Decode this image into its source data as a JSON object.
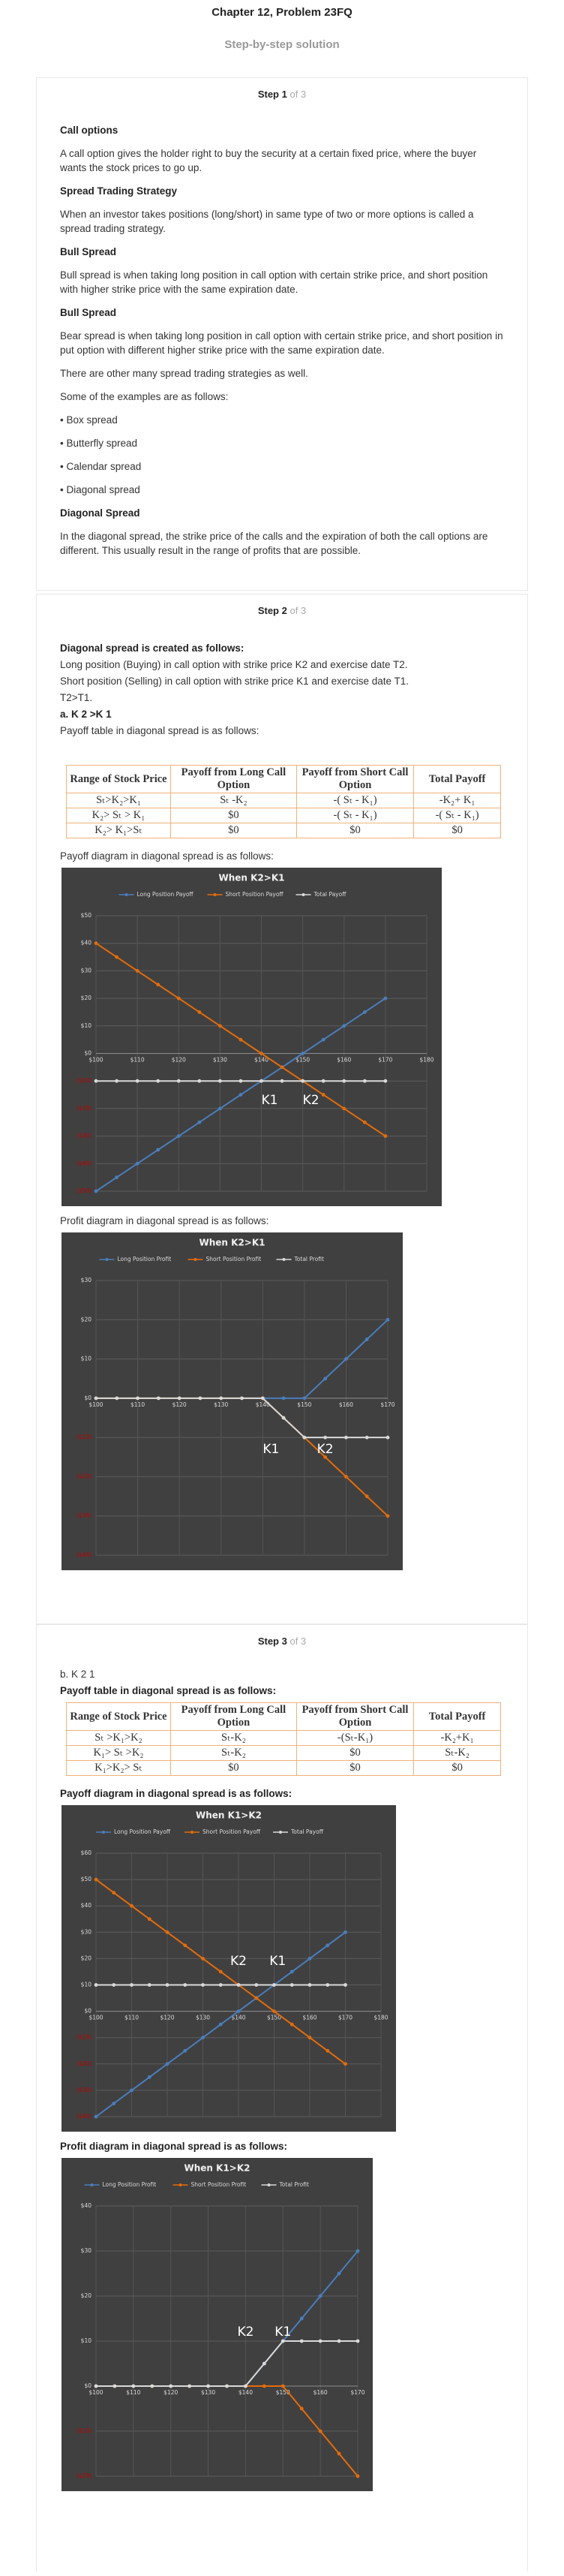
{
  "header": {
    "title": "Chapter 12, Problem 23FQ",
    "subtitle": "Step-by-step solution"
  },
  "steps": [
    {
      "label": "Step 1",
      "of": "of 3",
      "items": [
        "Call options",
        "A call option gives the holder right to buy the security at a certain fixed price, where the buyer wants the stock prices to go up.",
        "Spread Trading Strategy",
        "When an investor takes positions (long/short) in same type of two or more options is called a spread trading strategy.",
        "Bull Spread",
        "Bull spread is when taking long position in call option with certain strike price, and short position with higher strike price with the same expiration date.",
        "Bull Spread",
        "Bear spread is when taking long position in call option with certain strike price, and short position in put option with different higher strike price with the same expiration date.",
        "There are other many spread trading strategies as well.",
        "Some of the examples are as follows:",
        "• Box spread",
        "• Butterfly spread",
        "• Calendar spread",
        "• Diagonal spread",
        "Diagonal Spread",
        "In the diagonal spread, the strike price of the calls and the expiration of both the call options are different. This usually result in the range of profits that are possible."
      ]
    },
    {
      "label": "Step 2",
      "of": "of 3",
      "items": [
        "Diagonal spread is created as follows:",
        "Long position (Buying) in call option with strike price K2 and exercise date T2.",
        "Short position (Selling) in call option with strike price K1 and exercise date T1.",
        "T2>T1.",
        "a. K 2 >K 1",
        "Payoff table in diagonal spread is as follows:"
      ],
      "table": {
        "headers": [
          "Range of Stock Price",
          "Payoff from Long Call Option",
          "Payoff from Short Call Option",
          "Total Payoff"
        ],
        "rows": [
          [
            "Sₜ>K₂>K₁",
            "Sₜ -K₂",
            "-( Sₜ - K₁)",
            "-K₂+ K₁"
          ],
          [
            "K₂> Sₜ > K₁",
            "$0",
            "-( Sₜ - K₁)",
            "-( Sₜ - K₁)"
          ],
          [
            "K₂> K₁>Sₜ",
            "$0",
            "$0",
            "$0"
          ]
        ]
      },
      "captions": [
        "Payoff diagram in diagonal spread is as follows:",
        "Profit diagram in diagonal spread is as follows:"
      ]
    },
    {
      "label": "Step 3",
      "of": "of 3",
      "items": [
        "b. K 2 1",
        "Payoff table in diagonal spread is as follows:"
      ],
      "table": {
        "headers": [
          "Range of Stock Price",
          "Payoff from Long Call Option",
          "Payoff from Short Call Option",
          "Total Payoff"
        ],
        "rows": [
          [
            "Sₜ >K₁>K₂",
            "Sₜ-K₂",
            "-(Sₜ-K₁)",
            "-K₂+K₁"
          ],
          [
            "K₁> Sₜ >K₂",
            "Sₜ-K₂",
            "$0",
            "Sₜ-K₂"
          ],
          [
            "K₁>K₂> Sₜ",
            "$0",
            "$0",
            "$0"
          ]
        ]
      },
      "captions": [
        "Payoff diagram in diagonal spread is as follows:",
        "Profit diagram in diagonal spread is as follows:"
      ]
    }
  ],
  "chart_data": [
    {
      "type": "line",
      "title": "When K2>K1",
      "background": "#404040",
      "grid": true,
      "negative_tick_color": "#c00000",
      "x": [
        100,
        105,
        110,
        115,
        120,
        125,
        130,
        135,
        140,
        145,
        150,
        155,
        160,
        165,
        170
      ],
      "xlim": [
        100,
        180
      ],
      "xticks": [
        {
          "value": 100,
          "label": "$100"
        },
        {
          "value": 110,
          "label": "$110"
        },
        {
          "value": 120,
          "label": "$120"
        },
        {
          "value": 130,
          "label": "$130"
        },
        {
          "value": 140,
          "label": "$140"
        },
        {
          "value": 150,
          "label": "$150"
        },
        {
          "value": 160,
          "label": "$160"
        },
        {
          "value": 170,
          "label": "$170"
        },
        {
          "value": 180,
          "label": "$180"
        }
      ],
      "ylim": [
        -50,
        50
      ],
      "yticks": [
        {
          "value": -50,
          "label": "($50)"
        },
        {
          "value": -40,
          "label": "($40)"
        },
        {
          "value": -30,
          "label": "($30)"
        },
        {
          "value": -20,
          "label": "($20)"
        },
        {
          "value": -10,
          "label": "($10)"
        },
        {
          "value": 0,
          "label": "$0"
        },
        {
          "value": 10,
          "label": "$10"
        },
        {
          "value": 20,
          "label": "$20"
        },
        {
          "value": 30,
          "label": "$30"
        },
        {
          "value": 40,
          "label": "$40"
        },
        {
          "value": 50,
          "label": "$50"
        }
      ],
      "series": [
        {
          "name": "Long Position Payoff",
          "color": "#4a7ebb",
          "values": [
            -50,
            -45,
            -40,
            -35,
            -30,
            -25,
            -20,
            -15,
            -10,
            -5,
            0,
            5,
            10,
            15,
            20
          ]
        },
        {
          "name": "Short Position Payoff",
          "color": "#e46c0a",
          "values": [
            40,
            35,
            30,
            25,
            20,
            15,
            10,
            5,
            0,
            -5,
            -10,
            -15,
            -20,
            -25,
            -30
          ]
        },
        {
          "name": "Total Payoff",
          "color": "#d9d9d9",
          "values": [
            -10,
            -10,
            -10,
            -10,
            -10,
            -10,
            -10,
            -10,
            -10,
            -10,
            -10,
            -10,
            -10,
            -10,
            -10
          ]
        }
      ],
      "annotations": [
        {
          "text": "K1",
          "x": 142,
          "y": -17
        },
        {
          "text": "K2",
          "x": 152,
          "y": -17
        }
      ]
    },
    {
      "type": "line",
      "title": "When K2>K1",
      "background": "#404040",
      "grid": true,
      "negative_tick_color": "#c00000",
      "x": [
        100,
        105,
        110,
        115,
        120,
        125,
        130,
        135,
        140,
        145,
        150,
        155,
        160,
        165,
        170
      ],
      "xlim": [
        100,
        170
      ],
      "xticks": [
        {
          "value": 100,
          "label": "$100"
        },
        {
          "value": 110,
          "label": "$110"
        },
        {
          "value": 120,
          "label": "$120"
        },
        {
          "value": 130,
          "label": "$130"
        },
        {
          "value": 140,
          "label": "$140"
        },
        {
          "value": 150,
          "label": "$150"
        },
        {
          "value": 160,
          "label": "$160"
        },
        {
          "value": 170,
          "label": "$170"
        }
      ],
      "ylim": [
        -40,
        30
      ],
      "yticks": [
        {
          "value": -40,
          "label": "($40)"
        },
        {
          "value": -30,
          "label": "($30)"
        },
        {
          "value": -20,
          "label": "($20)"
        },
        {
          "value": -10,
          "label": "($10)"
        },
        {
          "value": 0,
          "label": "$0"
        },
        {
          "value": 10,
          "label": "$10"
        },
        {
          "value": 20,
          "label": "$20"
        },
        {
          "value": 30,
          "label": "$30"
        }
      ],
      "series": [
        {
          "name": "Long Position Profit",
          "color": "#4a7ebb",
          "values": [
            0,
            0,
            0,
            0,
            0,
            0,
            0,
            0,
            0,
            0,
            0,
            5,
            10,
            15,
            20
          ]
        },
        {
          "name": "Short Position Profit",
          "color": "#e46c0a",
          "values": [
            0,
            0,
            0,
            0,
            0,
            0,
            0,
            0,
            0,
            -5,
            -10,
            -15,
            -20,
            -25,
            -30
          ]
        },
        {
          "name": "Total Profit",
          "color": "#d9d9d9",
          "values": [
            0,
            0,
            0,
            0,
            0,
            0,
            0,
            0,
            0,
            -5,
            -10,
            -10,
            -10,
            -10,
            -10
          ]
        }
      ],
      "annotations": [
        {
          "text": "K1",
          "x": 142,
          "y": -13
        },
        {
          "text": "K2",
          "x": 155,
          "y": -13
        }
      ]
    },
    {
      "type": "line",
      "title": "When K1>K2",
      "background": "#404040",
      "grid": true,
      "negative_tick_color": "#c00000",
      "x": [
        100,
        105,
        110,
        115,
        120,
        125,
        130,
        135,
        140,
        145,
        150,
        155,
        160,
        165,
        170
      ],
      "xlim": [
        100,
        180
      ],
      "xticks": [
        {
          "value": 100,
          "label": "$100"
        },
        {
          "value": 110,
          "label": "$110"
        },
        {
          "value": 120,
          "label": "$120"
        },
        {
          "value": 130,
          "label": "$130"
        },
        {
          "value": 140,
          "label": "$140"
        },
        {
          "value": 150,
          "label": "$150"
        },
        {
          "value": 160,
          "label": "$160"
        },
        {
          "value": 170,
          "label": "$170"
        },
        {
          "value": 180,
          "label": "$180"
        }
      ],
      "ylim": [
        -40,
        60
      ],
      "yticks": [
        {
          "value": -40,
          "label": "($40)"
        },
        {
          "value": -30,
          "label": "($30)"
        },
        {
          "value": -20,
          "label": "($20)"
        },
        {
          "value": -10,
          "label": "($10)"
        },
        {
          "value": 0,
          "label": "$0"
        },
        {
          "value": 10,
          "label": "$10"
        },
        {
          "value": 20,
          "label": "$20"
        },
        {
          "value": 30,
          "label": "$30"
        },
        {
          "value": 40,
          "label": "$40"
        },
        {
          "value": 50,
          "label": "$50"
        },
        {
          "value": 60,
          "label": "$60"
        }
      ],
      "series": [
        {
          "name": "Long Position Payoff",
          "color": "#4a7ebb",
          "values": [
            -40,
            -35,
            -30,
            -25,
            -20,
            -15,
            -10,
            -5,
            0,
            5,
            10,
            15,
            20,
            25,
            30
          ]
        },
        {
          "name": "Short Position Payoff",
          "color": "#e46c0a",
          "values": [
            50,
            45,
            40,
            35,
            30,
            25,
            20,
            15,
            10,
            5,
            0,
            -5,
            -10,
            -15,
            -20
          ]
        },
        {
          "name": "Total Payoff",
          "color": "#d9d9d9",
          "values": [
            10,
            10,
            10,
            10,
            10,
            10,
            10,
            10,
            10,
            10,
            10,
            10,
            10,
            10,
            10
          ]
        }
      ],
      "annotations": [
        {
          "text": "K2",
          "x": 140,
          "y": 19
        },
        {
          "text": "K1",
          "x": 151,
          "y": 19
        }
      ]
    },
    {
      "type": "line",
      "title": "When K1>K2",
      "background": "#404040",
      "grid": true,
      "negative_tick_color": "#c00000",
      "x": [
        100,
        105,
        110,
        115,
        120,
        125,
        130,
        135,
        140,
        145,
        150,
        155,
        160,
        165,
        170
      ],
      "xlim": [
        100,
        170
      ],
      "xticks": [
        {
          "value": 100,
          "label": "$100"
        },
        {
          "value": 110,
          "label": "$110"
        },
        {
          "value": 120,
          "label": "$120"
        },
        {
          "value": 130,
          "label": "$130"
        },
        {
          "value": 140,
          "label": "$140"
        },
        {
          "value": 150,
          "label": "$150"
        },
        {
          "value": 160,
          "label": "$160"
        },
        {
          "value": 170,
          "label": "$170"
        }
      ],
      "ylim": [
        -20,
        40
      ],
      "yticks": [
        {
          "value": -20,
          "label": "($20)"
        },
        {
          "value": -10,
          "label": "($10)"
        },
        {
          "value": 0,
          "label": "$0"
        },
        {
          "value": 10,
          "label": "$10"
        },
        {
          "value": 20,
          "label": "$20"
        },
        {
          "value": 30,
          "label": "$30"
        },
        {
          "value": 40,
          "label": "$40"
        }
      ],
      "series": [
        {
          "name": "Long Position Profit",
          "color": "#4a7ebb",
          "values": [
            0,
            0,
            0,
            0,
            0,
            0,
            0,
            0,
            0,
            5,
            10,
            15,
            20,
            25,
            30
          ]
        },
        {
          "name": "Short Position Profit",
          "color": "#e46c0a",
          "values": [
            0,
            0,
            0,
            0,
            0,
            0,
            0,
            0,
            0,
            0,
            0,
            -5,
            -10,
            -15,
            -20
          ]
        },
        {
          "name": "Total Profit",
          "color": "#d9d9d9",
          "values": [
            0,
            0,
            0,
            0,
            0,
            0,
            0,
            0,
            0,
            5,
            10,
            10,
            10,
            10,
            10
          ]
        }
      ],
      "annotations": [
        {
          "text": "K2",
          "x": 140,
          "y": 12
        },
        {
          "text": "K1",
          "x": 150,
          "y": 12
        }
      ]
    }
  ]
}
